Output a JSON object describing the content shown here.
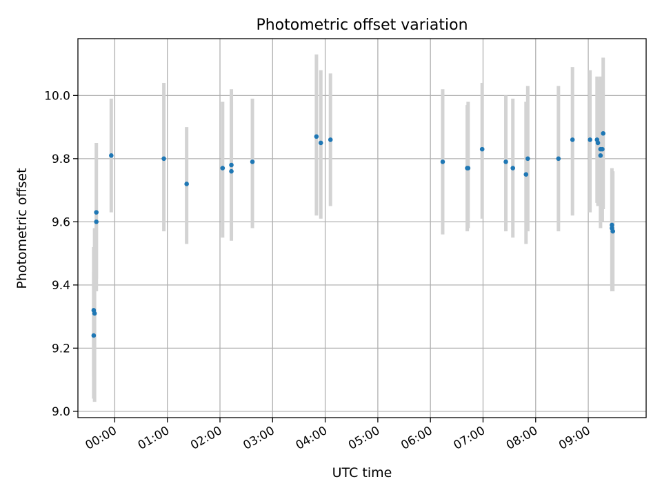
{
  "chart_data": {
    "type": "scatter",
    "title": "Photometric offset variation",
    "xlabel": "UTC time",
    "ylabel": "Photometric offset",
    "x_unit": "HH:MM",
    "xlim": [
      "23:18",
      "10:06"
    ],
    "ylim": [
      8.98,
      10.18
    ],
    "x_ticks": [
      "00:00",
      "01:00",
      "02:00",
      "03:00",
      "04:00",
      "05:00",
      "06:00",
      "07:00",
      "08:00",
      "09:00"
    ],
    "y_ticks": [
      9.0,
      9.2,
      9.4,
      9.6,
      9.8,
      10.0
    ],
    "grid": true,
    "legend": "none",
    "colors": {
      "points": "#1f77b4",
      "errorbars": "#d3d3d3"
    },
    "series": [
      {
        "points": [
          {
            "x": "23:36",
            "y": 9.24,
            "yerr_low": 9.04,
            "yerr_high": 9.44
          },
          {
            "x": "23:36",
            "y": 9.32,
            "yerr_low": 9.11,
            "yerr_high": 9.52
          },
          {
            "x": "23:37",
            "y": 9.31,
            "yerr_low": 9.03,
            "yerr_high": 9.58
          },
          {
            "x": "23:39",
            "y": 9.6,
            "yerr_low": 9.38,
            "yerr_high": 9.6
          },
          {
            "x": "23:39",
            "y": 9.63,
            "yerr_low": 9.42,
            "yerr_high": 9.85
          },
          {
            "x": "23:56",
            "y": 9.81,
            "yerr_low": 9.63,
            "yerr_high": 9.99
          },
          {
            "x": "00:56",
            "y": 9.8,
            "yerr_low": 9.57,
            "yerr_high": 10.04
          },
          {
            "x": "01:22",
            "y": 9.72,
            "yerr_low": 9.53,
            "yerr_high": 9.9
          },
          {
            "x": "02:03",
            "y": 9.77,
            "yerr_low": 9.55,
            "yerr_high": 9.98
          },
          {
            "x": "02:13",
            "y": 9.76,
            "yerr_low": 9.54,
            "yerr_high": 9.98
          },
          {
            "x": "02:13",
            "y": 9.78,
            "yerr_low": 9.55,
            "yerr_high": 10.02
          },
          {
            "x": "02:37",
            "y": 9.79,
            "yerr_low": 9.58,
            "yerr_high": 9.99
          },
          {
            "x": "03:50",
            "y": 9.87,
            "yerr_low": 9.62,
            "yerr_high": 10.13
          },
          {
            "x": "03:55",
            "y": 9.85,
            "yerr_low": 9.61,
            "yerr_high": 10.08
          },
          {
            "x": "04:06",
            "y": 9.86,
            "yerr_low": 9.65,
            "yerr_high": 10.07
          },
          {
            "x": "06:14",
            "y": 9.79,
            "yerr_low": 9.56,
            "yerr_high": 10.02
          },
          {
            "x": "06:42",
            "y": 9.77,
            "yerr_low": 9.57,
            "yerr_high": 9.97
          },
          {
            "x": "06:43",
            "y": 9.77,
            "yerr_low": 9.58,
            "yerr_high": 9.98
          },
          {
            "x": "06:59",
            "y": 9.83,
            "yerr_low": 9.61,
            "yerr_high": 10.04
          },
          {
            "x": "07:26",
            "y": 9.79,
            "yerr_low": 9.57,
            "yerr_high": 10.0
          },
          {
            "x": "07:34",
            "y": 9.77,
            "yerr_low": 9.55,
            "yerr_high": 9.99
          },
          {
            "x": "07:49",
            "y": 9.75,
            "yerr_low": 9.53,
            "yerr_high": 9.98
          },
          {
            "x": "07:51",
            "y": 9.8,
            "yerr_low": 9.57,
            "yerr_high": 10.03
          },
          {
            "x": "08:26",
            "y": 9.8,
            "yerr_low": 9.57,
            "yerr_high": 10.03
          },
          {
            "x": "08:42",
            "y": 9.86,
            "yerr_low": 9.62,
            "yerr_high": 10.09
          },
          {
            "x": "09:02",
            "y": 9.86,
            "yerr_low": 9.63,
            "yerr_high": 10.08
          },
          {
            "x": "09:10",
            "y": 9.86,
            "yerr_low": 9.66,
            "yerr_high": 10.06
          },
          {
            "x": "09:11",
            "y": 9.85,
            "yerr_low": 9.65,
            "yerr_high": 10.05
          },
          {
            "x": "09:14",
            "y": 9.83,
            "yerr_low": 9.6,
            "yerr_high": 10.06
          },
          {
            "x": "09:14",
            "y": 9.81,
            "yerr_low": 9.58,
            "yerr_high": 10.04
          },
          {
            "x": "09:16",
            "y": 9.83,
            "yerr_low": 9.6,
            "yerr_high": 10.03
          },
          {
            "x": "09:17",
            "y": 9.88,
            "yerr_low": 9.64,
            "yerr_high": 10.12
          },
          {
            "x": "09:27",
            "y": 9.59,
            "yerr_low": 9.4,
            "yerr_high": 9.76
          },
          {
            "x": "09:27",
            "y": 9.58,
            "yerr_low": 9.38,
            "yerr_high": 9.77
          },
          {
            "x": "09:28",
            "y": 9.57,
            "yerr_low": 9.38,
            "yerr_high": 9.76
          }
        ]
      }
    ]
  }
}
